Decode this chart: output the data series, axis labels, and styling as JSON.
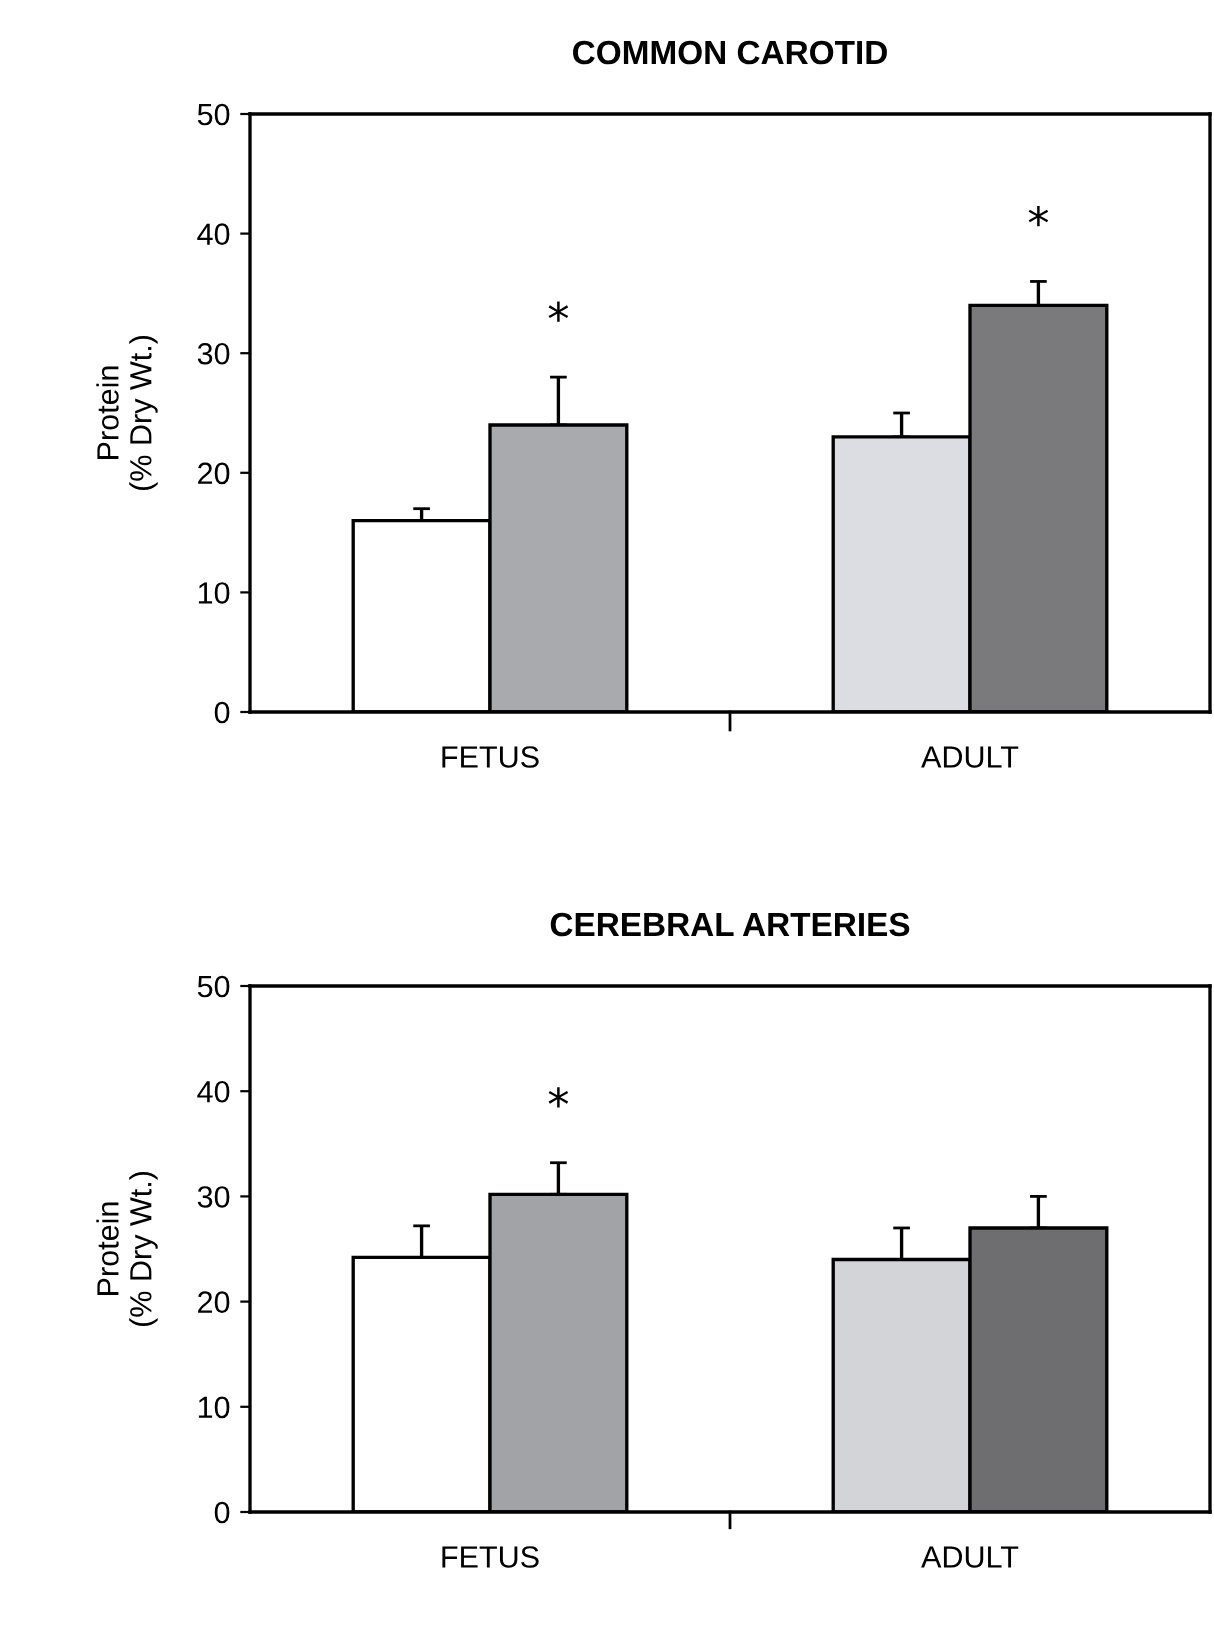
{
  "chart_data": [
    {
      "type": "bar",
      "title": "COMMON CAROTID",
      "ylabel": "Protein\n(% Dry Wt.)",
      "categories": [
        "FETUS",
        "ADULT"
      ],
      "series": [
        {
          "colors": [
            "#ffffff",
            "#dcdde2"
          ],
          "values": [
            16,
            23
          ],
          "errors": [
            1,
            2
          ]
        },
        {
          "colors": [
            "#a9aaae",
            "#7a7a7c"
          ],
          "values": [
            24,
            34
          ],
          "errors": [
            4,
            2
          ]
        }
      ],
      "annotations": [
        "*",
        "*"
      ],
      "ylim": [
        0,
        50
      ],
      "yticks": [
        0,
        10,
        20,
        30,
        40,
        50
      ],
      "grid": false
    },
    {
      "type": "bar",
      "title": "CEREBRAL ARTERIES",
      "ylabel": "Protein\n(% Dry Wt.)",
      "categories": [
        "FETUS",
        "ADULT"
      ],
      "series": [
        {
          "colors": [
            "#ffffff",
            "#d3d4d8"
          ],
          "values": [
            24.2,
            24
          ],
          "errors": [
            3,
            3
          ]
        },
        {
          "colors": [
            "#a2a3a6",
            "#6e6e70"
          ],
          "values": [
            30.2,
            27
          ],
          "errors": [
            3,
            3
          ]
        }
      ],
      "annotations": [
        "*"
      ],
      "ylim": [
        0,
        50
      ],
      "yticks": [
        0,
        10,
        20,
        30,
        40,
        50
      ],
      "grid": false
    }
  ]
}
